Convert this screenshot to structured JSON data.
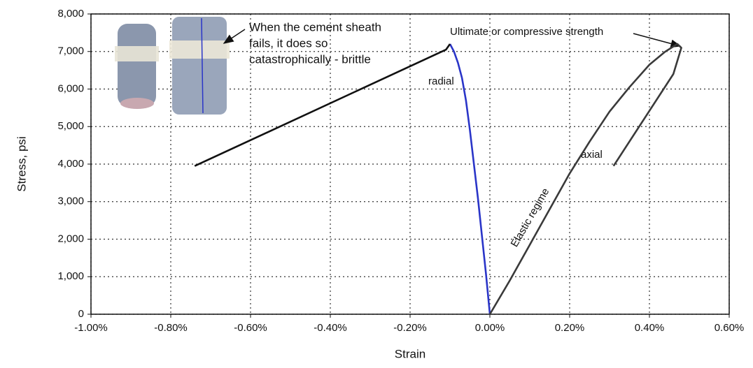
{
  "chart_data": {
    "type": "line",
    "xlabel": "Strain",
    "ylabel": "Stress, psi",
    "xlim": [
      -1.0,
      0.6
    ],
    "ylim": [
      0,
      8000
    ],
    "xticks": [
      {
        "value": -1.0,
        "label": "-1.00%"
      },
      {
        "value": -0.8,
        "label": "-0.80%"
      },
      {
        "value": -0.6,
        "label": "-0.60%"
      },
      {
        "value": -0.4,
        "label": "-0.40%"
      },
      {
        "value": -0.2,
        "label": "-0.20%"
      },
      {
        "value": 0.0,
        "label": "0.00%"
      },
      {
        "value": 0.2,
        "label": "0.20%"
      },
      {
        "value": 0.4,
        "label": "0.40%"
      },
      {
        "value": 0.6,
        "label": "0.60%"
      }
    ],
    "yticks": [
      0,
      {
        "value": 1000,
        "label": "1,000"
      },
      {
        "value": 2000,
        "label": "2,000"
      },
      {
        "value": 3000,
        "label": "3,000"
      },
      {
        "value": 4000,
        "label": "4,000"
      },
      {
        "value": 5000,
        "label": "5,000"
      },
      {
        "value": 6000,
        "label": "6,000"
      },
      {
        "value": 7000,
        "label": "7,000"
      },
      {
        "value": 8000,
        "label": "8,000"
      }
    ],
    "grid": true,
    "series": [
      {
        "name": "radial",
        "color": "#2a35c8",
        "x": [
          0,
          -0.01,
          -0.02,
          -0.03,
          -0.04,
          -0.05,
          -0.06,
          -0.07,
          -0.08,
          -0.09,
          -0.1
        ],
        "values": [
          0,
          1100,
          2100,
          3100,
          4000,
          4900,
          5700,
          6300,
          6700,
          7000,
          7200
        ]
      },
      {
        "color": "#111111",
        "x": [
          -0.1,
          -0.11,
          -0.74
        ],
        "values": [
          7200,
          7050,
          3950
        ]
      },
      {
        "name": "axial",
        "color": "#3a3a3a",
        "x": [
          0,
          0.05,
          0.1,
          0.15,
          0.2,
          0.25,
          0.3,
          0.35,
          0.4,
          0.44,
          0.47,
          0.48,
          0.46,
          0.31
        ],
        "values": [
          0,
          900,
          1850,
          2800,
          3750,
          4600,
          5400,
          6050,
          6650,
          7000,
          7200,
          7100,
          6400,
          3950
        ]
      }
    ],
    "annotations": [
      {
        "lines": [
          "When the cement sheath",
          "fails, it does so",
          "catastrophically - brittle"
        ]
      },
      {
        "text": "Ultimate or compressive strength"
      },
      {
        "text": "Elastic regime"
      }
    ]
  }
}
